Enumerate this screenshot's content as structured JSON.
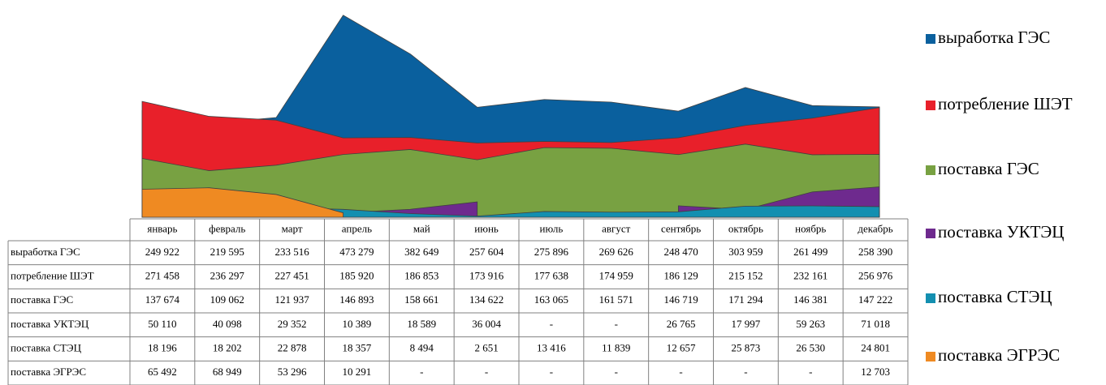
{
  "chart_data": {
    "type": "area",
    "categories": [
      "январь",
      "февраль",
      "март",
      "апрель",
      "май",
      "июнь",
      "июль",
      "август",
      "сентябрь",
      "октябрь",
      "ноябрь",
      "декабрь"
    ],
    "ylim": [
      0,
      490000
    ],
    "legend": "right",
    "series": [
      {
        "name": "выработка ГЭС",
        "color": "#0a609e",
        "values": [
          249922,
          219595,
          233516,
          473279,
          382649,
          257604,
          275896,
          269626,
          248470,
          303959,
          261499,
          258390
        ],
        "value_labels": [
          "249 922",
          "219 595",
          "233 516",
          "473 279",
          "382 649",
          "257 604",
          "275 896",
          "269 626",
          "248 470",
          "303 959",
          "261 499",
          "258 390"
        ]
      },
      {
        "name": "потребление  ШЭТ",
        "color": "#e8202a",
        "values": [
          271458,
          236297,
          227451,
          185920,
          186853,
          173916,
          177638,
          174959,
          186129,
          215152,
          232161,
          256976
        ],
        "value_labels": [
          "271 458",
          "236 297",
          "227 451",
          "185 920",
          "186 853",
          "173 916",
          "177 638",
          "174 959",
          "186 129",
          "215 152",
          "232 161",
          "256 976"
        ]
      },
      {
        "name": "поставка ГЭС",
        "color": "#78a142",
        "values": [
          137674,
          109062,
          121937,
          146893,
          158661,
          134622,
          163065,
          161571,
          146719,
          171294,
          146381,
          147222
        ],
        "value_labels": [
          "137 674",
          "109 062",
          "121 937",
          "146 893",
          "158 661",
          "134 622",
          "163 065",
          "161 571",
          "146 719",
          "171 294",
          "146 381",
          "147 222"
        ]
      },
      {
        "name": "поставка УКТЭЦ",
        "color": "#6e2a8e",
        "values": [
          50110,
          40098,
          29352,
          10389,
          18589,
          36004,
          null,
          null,
          26765,
          17997,
          59263,
          71018
        ],
        "value_labels": [
          "50 110",
          "40 098",
          "29 352",
          "10 389",
          "18 589",
          "36 004",
          "-",
          "-",
          "26 765",
          "17 997",
          "59 263",
          "71 018"
        ]
      },
      {
        "name": "поставка СТЭЦ",
        "color": "#138fb0",
        "values": [
          18196,
          18202,
          22878,
          18357,
          8494,
          2651,
          13416,
          11839,
          12657,
          25873,
          26530,
          24801
        ],
        "value_labels": [
          "18 196",
          "18 202",
          "22 878",
          "18 357",
          "8 494",
          "2 651",
          "13 416",
          "11 839",
          "12 657",
          "25 873",
          "26 530",
          "24 801"
        ]
      },
      {
        "name": "поставка ЭГРЭС",
        "color": "#ef8a22",
        "values": [
          65492,
          68949,
          53296,
          10291,
          null,
          null,
          null,
          null,
          null,
          null,
          null,
          12703
        ],
        "value_labels": [
          "65 492",
          "68 949",
          "53 296",
          "10 291",
          "-",
          "-",
          "-",
          "-",
          "-",
          "-",
          "-",
          "12 703"
        ]
      }
    ],
    "legend_labels": [
      "выработка ГЭС",
      "потребление ШЭТ",
      "поставка ГЭС",
      "поставка УКТЭЦ",
      "поставка СТЭЦ",
      "поставка ЭГРЭС"
    ]
  }
}
